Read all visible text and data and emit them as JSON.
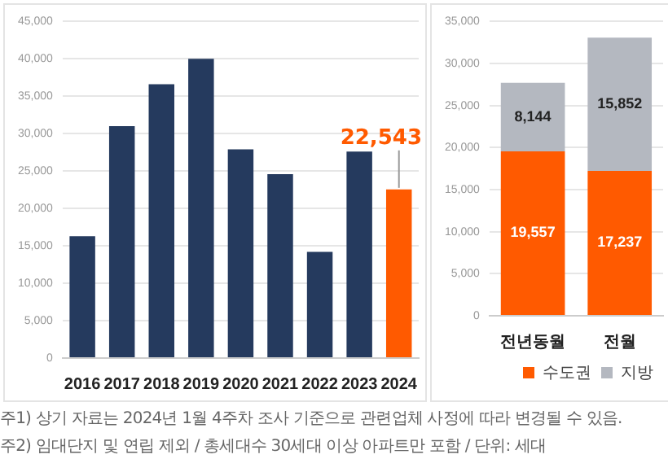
{
  "chart_data": [
    {
      "type": "bar",
      "categories": [
        "2016",
        "2017",
        "2018",
        "2019",
        "2020",
        "2021",
        "2022",
        "2023",
        "2024"
      ],
      "values": [
        16300,
        31000,
        36600,
        40000,
        27900,
        24600,
        14200,
        27600,
        22543
      ],
      "colors": [
        "#253a5e",
        "#253a5e",
        "#253a5e",
        "#253a5e",
        "#253a5e",
        "#253a5e",
        "#253a5e",
        "#253a5e",
        "#ff5a00"
      ],
      "value_labels": [
        null,
        null,
        null,
        null,
        null,
        null,
        null,
        null,
        "22,543"
      ],
      "ylim": [
        0,
        45000
      ],
      "yticks": [
        {
          "value": 0,
          "label": "0"
        },
        {
          "value": 5000,
          "label": "5,000"
        },
        {
          "value": 10000,
          "label": "10,000"
        },
        {
          "value": 15000,
          "label": "15,000"
        },
        {
          "value": 20000,
          "label": "20,000"
        },
        {
          "value": 25000,
          "label": "25,000"
        },
        {
          "value": 30000,
          "label": "30,000"
        },
        {
          "value": 35000,
          "label": "35,000"
        },
        {
          "value": 40000,
          "label": "40,000"
        },
        {
          "value": 45000,
          "label": "45,000"
        }
      ],
      "grid": "y",
      "annotations": [
        "주1) 상기 자료는 2024년 1월 4주차 조사 기준으로 관련업체 사정에 따라 변경될 수 있음.",
        "주2) 임대단지 및 연립 제외 / 총세대수 30세대 이상 아파트만 포함 / 단위: 세대"
      ]
    },
    {
      "type": "bar",
      "stacked": true,
      "categories": [
        "전년동월",
        "전월"
      ],
      "series": [
        {
          "name": "수도권",
          "color": "#ff5a00",
          "values": [
            19557,
            17237
          ],
          "value_labels": [
            "19,557",
            "17,237"
          ]
        },
        {
          "name": "지방",
          "color": "#b4b8c0",
          "values": [
            8144,
            15852
          ],
          "value_labels": [
            "8,144",
            "15,852"
          ]
        }
      ],
      "ylim": [
        0,
        35000
      ],
      "yticks": [
        {
          "value": 0,
          "label": "0"
        },
        {
          "value": 5000,
          "label": "5,000"
        },
        {
          "value": 10000,
          "label": "10,000"
        },
        {
          "value": 15000,
          "label": "15,000"
        },
        {
          "value": 20000,
          "label": "20,000"
        },
        {
          "value": 25000,
          "label": "25,000"
        },
        {
          "value": 30000,
          "label": "30,000"
        },
        {
          "value": 35000,
          "label": "35,000"
        }
      ],
      "grid": "y",
      "legend": "bottom right"
    }
  ]
}
